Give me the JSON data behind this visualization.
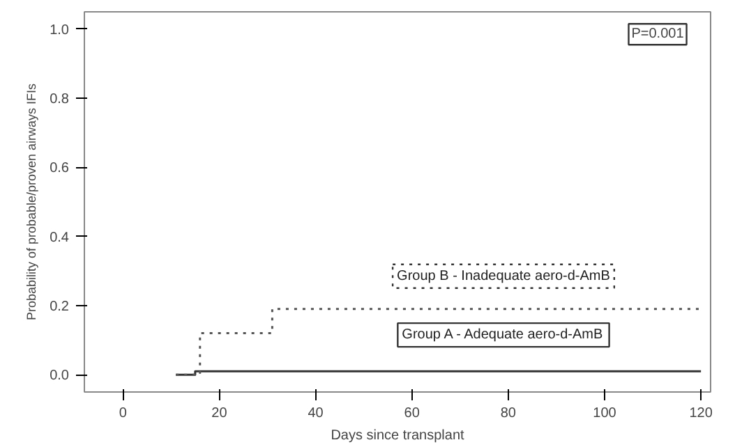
{
  "chart_data": {
    "type": "step",
    "xlabel": "Days since transplant",
    "ylabel": "Probability of probable/proven airways IFIs",
    "xlim": [
      -8,
      122
    ],
    "ylim": [
      -0.05,
      1.05
    ],
    "xticks": [
      0,
      20,
      40,
      60,
      80,
      100,
      120
    ],
    "yticks": [
      {
        "value": 0,
        "label": "0.0"
      },
      {
        "value": 0.2,
        "label": "0.2"
      },
      {
        "value": 0.4,
        "label": "0.4"
      },
      {
        "value": 0.6,
        "label": "0.6"
      },
      {
        "value": 0.8,
        "label": "0.8"
      },
      {
        "value": 1,
        "label": "1.0"
      }
    ],
    "series": [
      {
        "name": "Group A - Adequate aero-d-AmB",
        "color": "#333333",
        "line_style": "solid",
        "x": [
          11,
          15,
          120
        ],
        "values": [
          0,
          0.01,
          0.01
        ]
      },
      {
        "name": "Group B - Inadequate aero-d-AmB",
        "color": "#555555",
        "line_style": "dotted",
        "x": [
          11,
          15,
          16,
          31,
          120
        ],
        "values": [
          0,
          0,
          0.12,
          0.19,
          0.19
        ]
      }
    ],
    "annotations": [
      "P=0.001"
    ],
    "grid": false
  }
}
